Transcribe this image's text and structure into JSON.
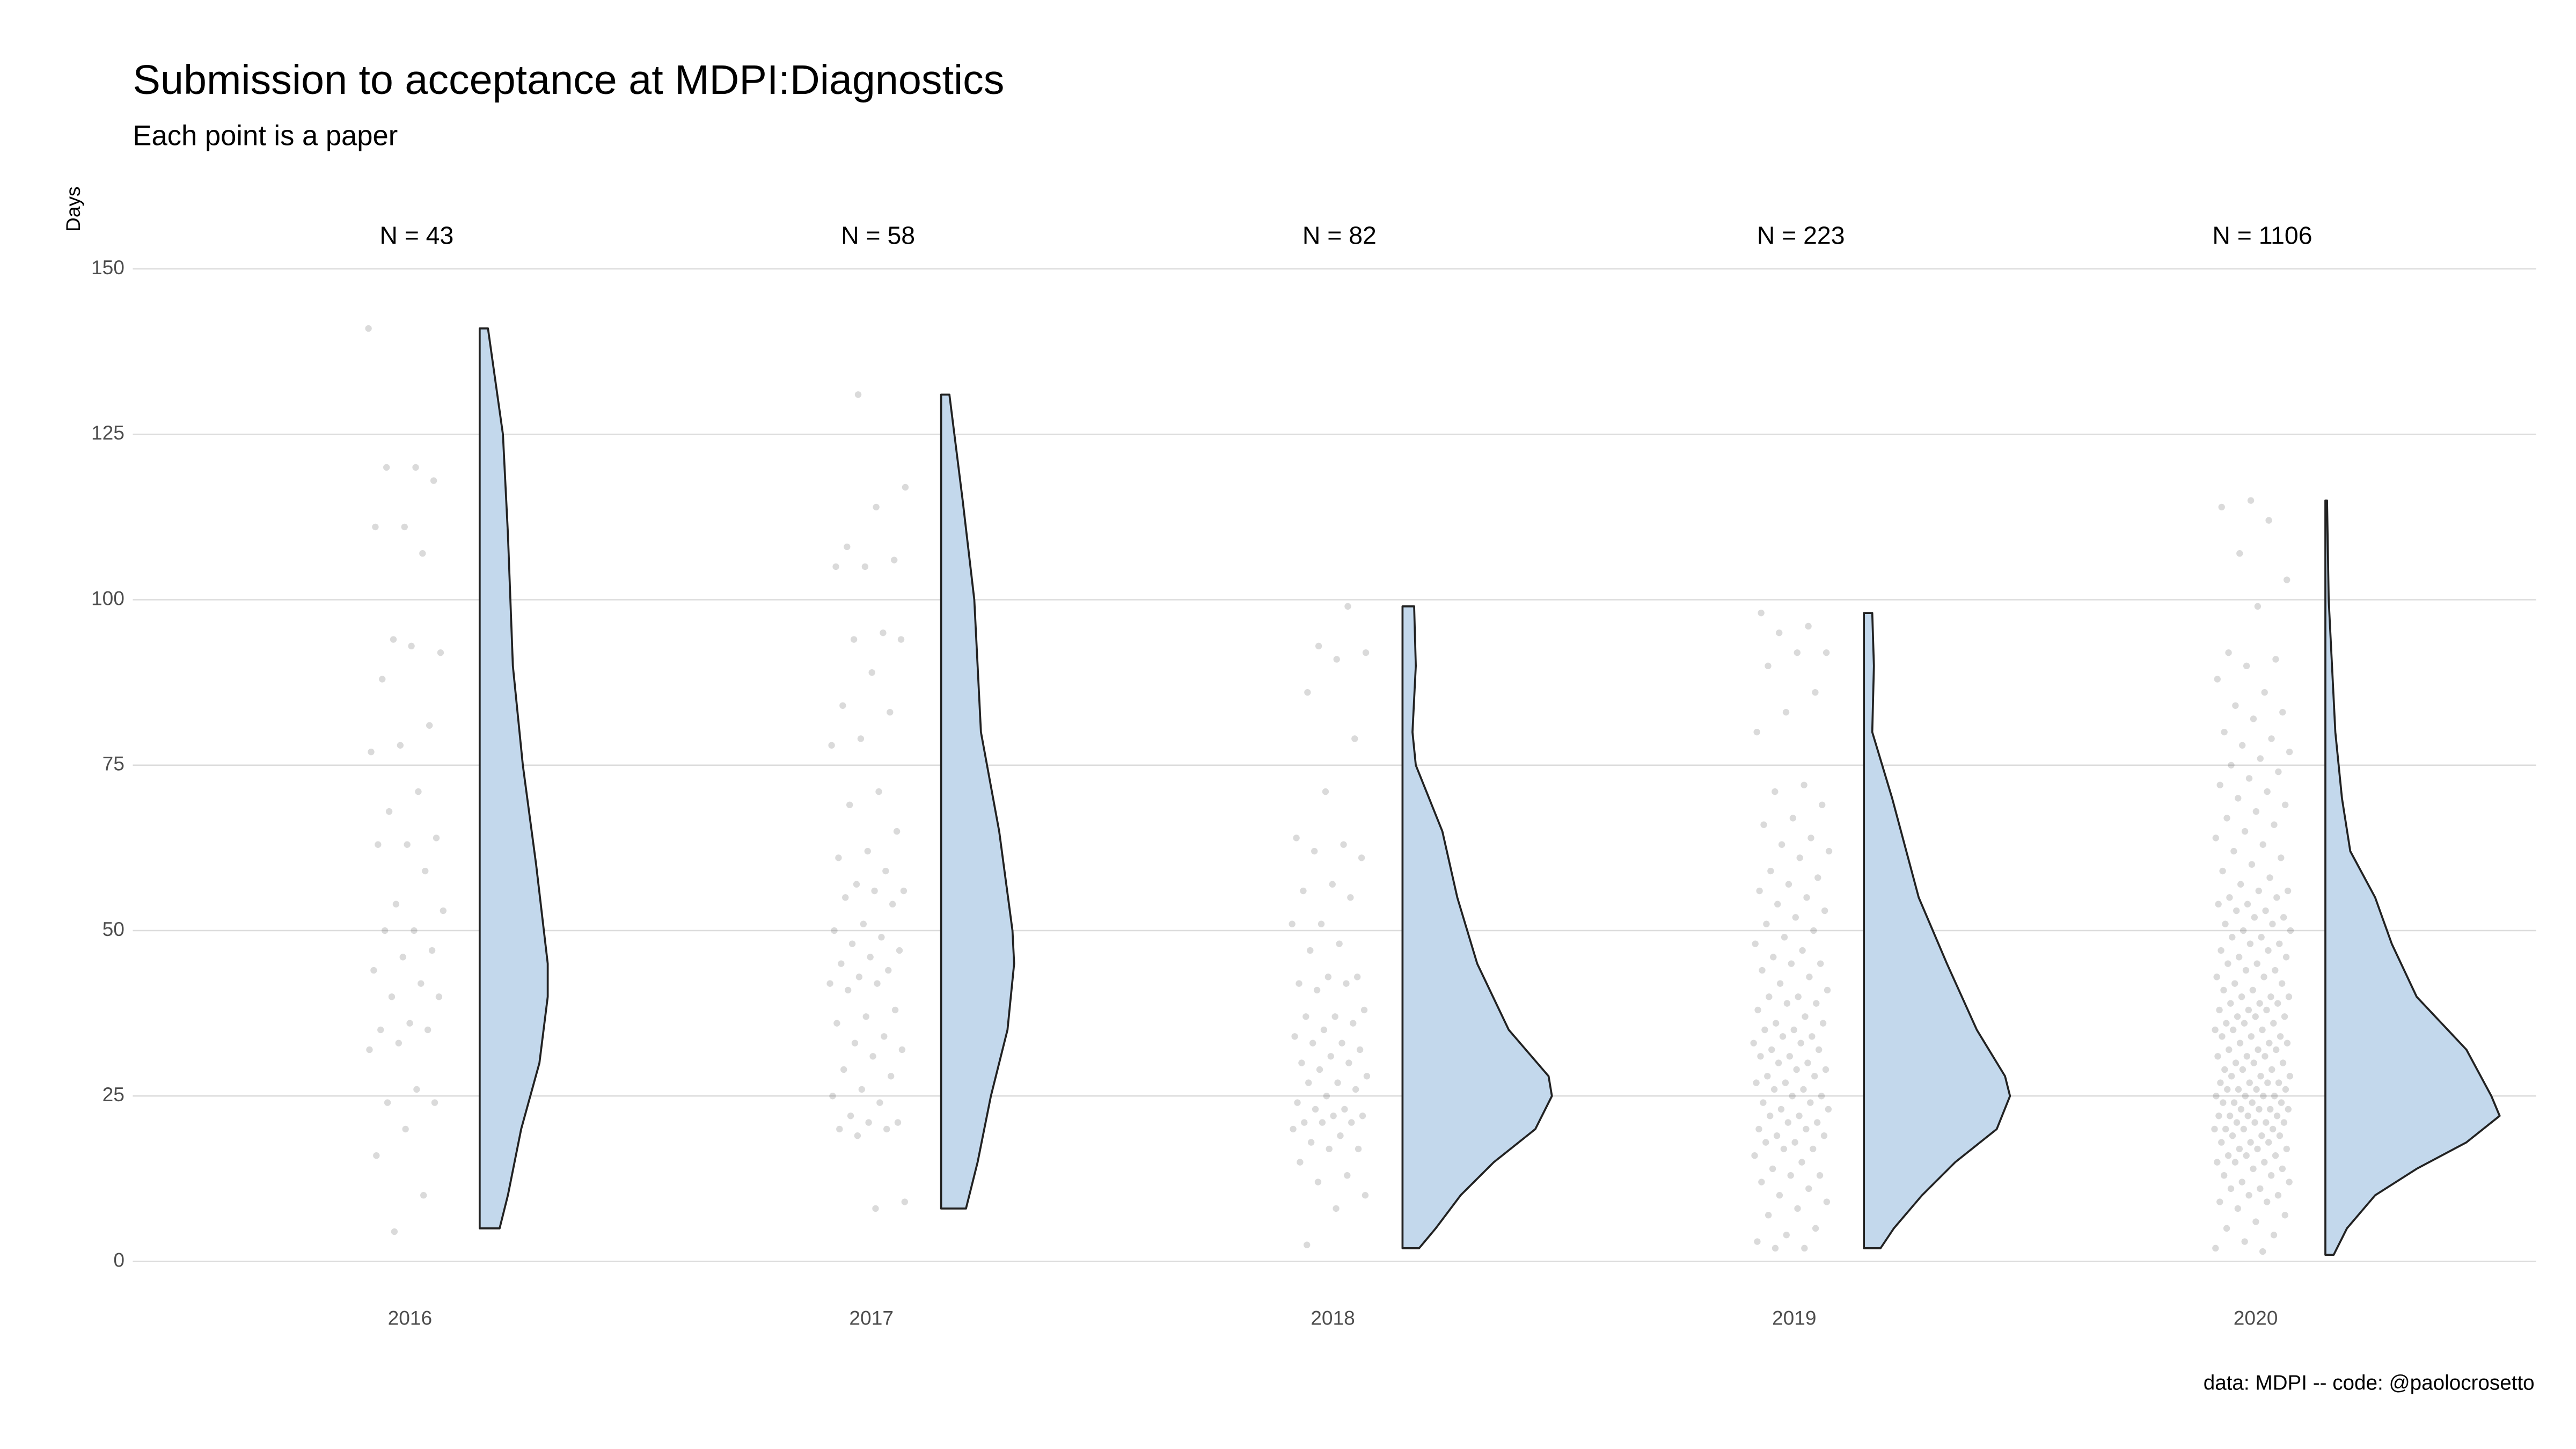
{
  "chart_data": {
    "type": "raincloud",
    "title": "Submission to acceptance at MDPI:Diagnostics",
    "subtitle": "Each point is a paper",
    "y_label": "Days",
    "caption": "data: MDPI -- code: @paolocrosetto",
    "categories": [
      "2016",
      "2017",
      "2018",
      "2019",
      "2020"
    ],
    "count_labels": [
      "N = 43",
      "N = 58",
      "N = 82",
      "N = 223",
      "N = 1106"
    ],
    "ylim": [
      0,
      150
    ],
    "yticks": [
      0,
      25,
      50,
      75,
      100,
      125,
      150
    ],
    "grid": true,
    "point_color": "#333333",
    "violin_color": "#c3d8ec",
    "groups": [
      {
        "points": [
          141,
          120,
          120,
          118,
          111,
          111,
          107,
          94,
          92,
          93,
          88,
          81,
          78,
          77,
          71,
          68,
          64,
          63,
          63,
          59,
          54,
          53,
          50,
          50,
          47,
          46,
          44,
          42,
          40,
          40,
          36,
          35,
          35,
          33,
          32,
          26,
          24,
          24,
          20,
          16,
          10,
          4.5
        ],
        "density_y": [
          141,
          125,
          110,
          90,
          75,
          60,
          45,
          40,
          30,
          20,
          10,
          5
        ],
        "density": [
          0.05,
          0.14,
          0.17,
          0.2,
          0.26,
          0.34,
          0.41,
          0.41,
          0.36,
          0.25,
          0.17,
          0.12
        ]
      },
      {
        "points": [
          131,
          117,
          114,
          108,
          106,
          105,
          105,
          95,
          94,
          94,
          89,
          84,
          83,
          79,
          78,
          71,
          69,
          65,
          62,
          61,
          59,
          57,
          56,
          56,
          55,
          54,
          51,
          50,
          49,
          48,
          47,
          46,
          45,
          44,
          43,
          42,
          42,
          41,
          38,
          37,
          36,
          34,
          33,
          32,
          31,
          29,
          28,
          26,
          25,
          24,
          22,
          21,
          21,
          20,
          20,
          19,
          9,
          8
        ],
        "density_y": [
          131,
          115,
          100,
          80,
          65,
          50,
          45,
          35,
          25,
          15,
          8
        ],
        "density": [
          0.05,
          0.13,
          0.2,
          0.24,
          0.35,
          0.43,
          0.44,
          0.4,
          0.3,
          0.22,
          0.15
        ]
      },
      {
        "points": [
          99,
          93,
          92,
          91,
          86,
          79,
          71,
          64,
          63,
          62,
          61,
          57,
          56,
          55,
          51,
          51,
          48,
          47,
          43,
          43,
          42,
          42,
          41,
          38,
          37,
          37,
          36,
          35,
          34,
          33,
          33,
          32,
          31,
          30,
          30,
          29,
          28,
          27,
          27,
          26,
          25,
          24,
          23,
          23,
          22,
          22,
          21,
          21,
          21,
          20,
          19,
          18,
          17,
          17,
          15,
          13,
          12,
          10,
          8,
          2.5
        ],
        "density_y": [
          99,
          90,
          80,
          75,
          65,
          55,
          45,
          35,
          28,
          25,
          20,
          15,
          10,
          5,
          2
        ],
        "density": [
          0.07,
          0.08,
          0.06,
          0.08,
          0.24,
          0.33,
          0.45,
          0.64,
          0.88,
          0.9,
          0.8,
          0.55,
          0.35,
          0.2,
          0.1
        ]
      },
      {
        "points": [
          98,
          96,
          95,
          92,
          92,
          90,
          86,
          83,
          80,
          72,
          71,
          69,
          67,
          66,
          64,
          63,
          62,
          61,
          59,
          58,
          57,
          56,
          55,
          54,
          53,
          52,
          51,
          50,
          49,
          48,
          47,
          46,
          45,
          45,
          44,
          43,
          42,
          41,
          40,
          40,
          39,
          39,
          38,
          37,
          36,
          36,
          35,
          35,
          34,
          34,
          33,
          33,
          32,
          32,
          31,
          31,
          30,
          30,
          29,
          29,
          28,
          28,
          27,
          27,
          26,
          26,
          25,
          25,
          24,
          24,
          23,
          23,
          22,
          22,
          21,
          21,
          20,
          20,
          19,
          19,
          18,
          18,
          17,
          17,
          16,
          15,
          14,
          13,
          13,
          12,
          11,
          10,
          9,
          8,
          7,
          5,
          4,
          3,
          2,
          2
        ],
        "density_y": [
          98,
          90,
          80,
          70,
          55,
          45,
          35,
          28,
          25,
          20,
          15,
          10,
          5,
          2
        ],
        "density": [
          0.05,
          0.06,
          0.05,
          0.17,
          0.33,
          0.5,
          0.68,
          0.85,
          0.88,
          0.8,
          0.55,
          0.35,
          0.18,
          0.1
        ]
      },
      {
        "points": [
          115,
          114,
          112,
          107,
          103,
          99,
          92,
          91,
          90,
          88,
          86,
          84,
          83,
          82,
          80,
          79,
          78,
          77,
          76,
          75,
          74,
          73,
          72,
          71,
          70,
          69,
          68,
          67,
          66,
          65,
          64,
          63,
          62,
          61,
          60,
          59,
          58,
          57,
          56,
          56,
          55,
          55,
          54,
          54,
          53,
          53,
          52,
          52,
          51,
          51,
          50,
          50,
          49,
          49,
          48,
          48,
          47,
          47,
          46,
          46,
          45,
          45,
          44,
          44,
          43,
          43,
          42,
          42,
          41,
          41,
          40,
          40,
          40,
          39,
          39,
          39,
          38,
          38,
          38,
          37,
          37,
          37,
          36,
          36,
          36,
          35,
          35,
          35,
          34,
          34,
          34,
          33,
          33,
          33,
          32,
          32,
          32,
          31,
          31,
          31,
          30,
          30,
          30,
          29,
          29,
          29,
          28,
          28,
          28,
          27,
          27,
          27,
          27,
          26,
          26,
          26,
          26,
          25,
          25,
          25,
          25,
          24,
          24,
          24,
          24,
          23,
          23,
          23,
          23,
          22,
          22,
          22,
          22,
          21,
          21,
          21,
          21,
          20,
          20,
          20,
          20,
          19,
          19,
          19,
          18,
          18,
          18,
          17,
          17,
          17,
          16,
          16,
          16,
          15,
          15,
          15,
          14,
          14,
          13,
          13,
          12,
          12,
          11,
          11,
          10,
          10,
          9,
          9,
          8,
          7,
          6,
          5,
          4,
          3,
          2,
          1.5
        ],
        "density_y": [
          115,
          100,
          80,
          70,
          62,
          55,
          48,
          40,
          32,
          25,
          22,
          18,
          14,
          10,
          5,
          1
        ],
        "density": [
          0.01,
          0.02,
          0.06,
          0.1,
          0.15,
          0.3,
          0.4,
          0.55,
          0.85,
          1.0,
          1.05,
          0.85,
          0.55,
          0.3,
          0.13,
          0.05
        ]
      }
    ]
  }
}
